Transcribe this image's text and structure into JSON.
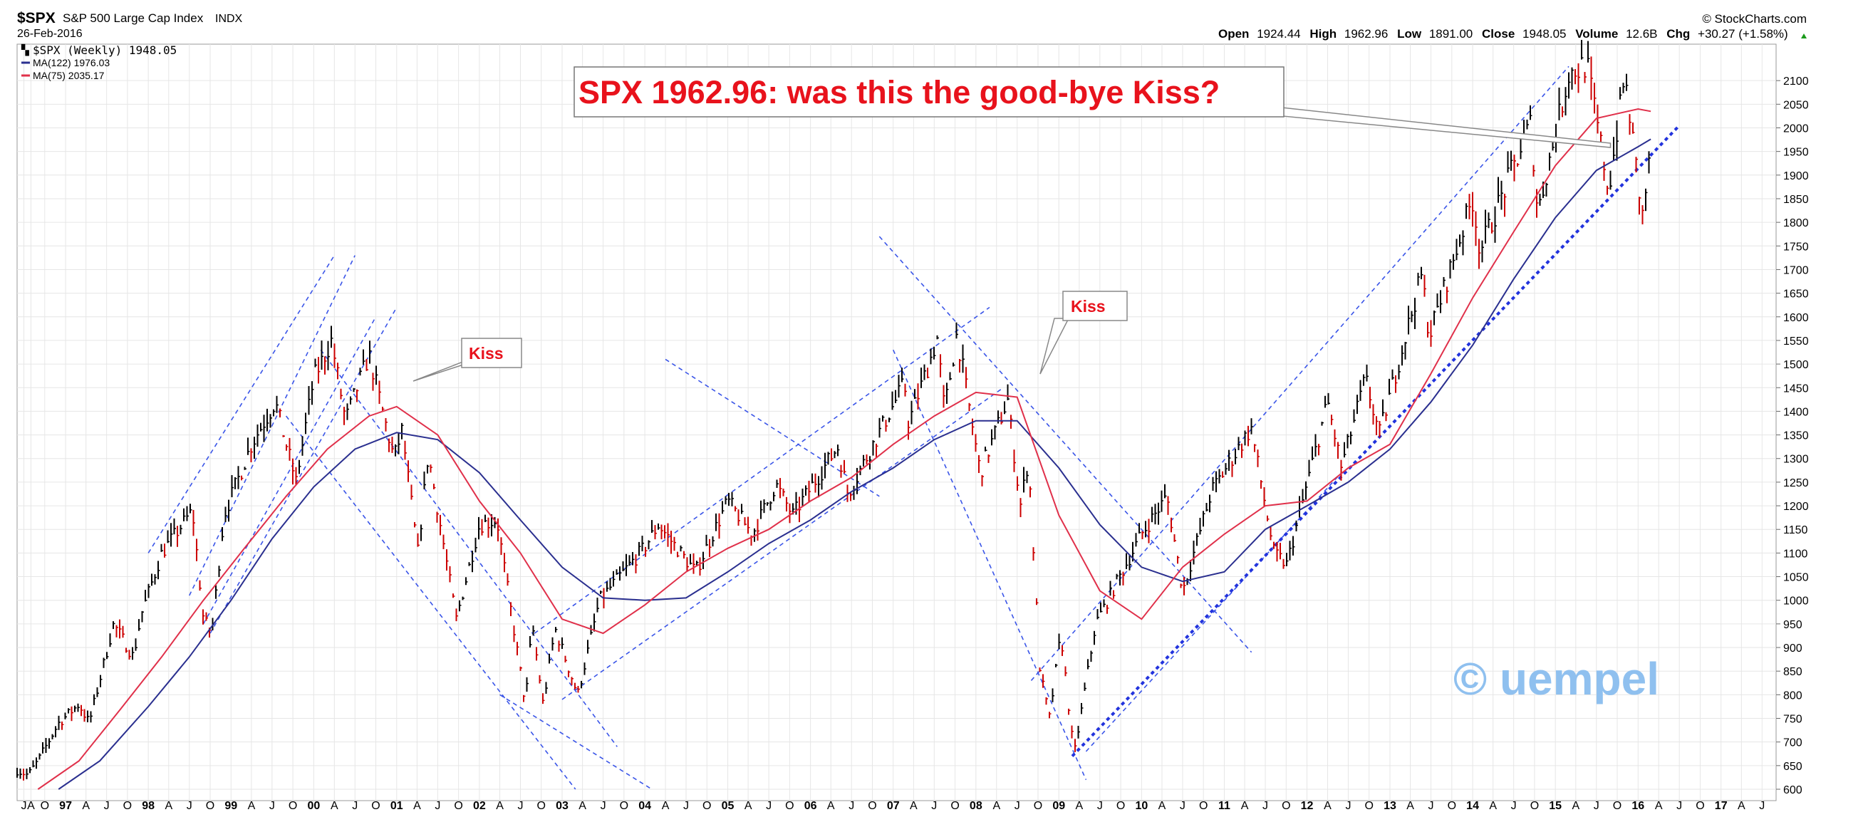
{
  "header": {
    "symbol": "$SPX",
    "name": "S&P 500 Large Cap Index",
    "exchange": "INDX",
    "date": "26-Feb-2016",
    "brand": "© StockCharts.com",
    "quote": {
      "open_label": "Open",
      "open": "1924.44",
      "high_label": "High",
      "high": "1962.96",
      "low_label": "Low",
      "low": "1891.00",
      "close_label": "Close",
      "close": "1948.05",
      "volume_label": "Volume",
      "volume": "12.6B",
      "chg_label": "Chg",
      "chg": "+30.27 (+1.58%)"
    }
  },
  "legend": {
    "price": "$SPX (Weekly) 1948.05",
    "ma122": "MA(122) 1976.03",
    "ma75": "MA(75) 2035.17"
  },
  "annotations": {
    "headline": "SPX 1962.96: was this the good-bye Kiss?",
    "kiss1": "Kiss",
    "kiss2": "Kiss",
    "watermark": "© uempel"
  },
  "colors": {
    "up": "#000000",
    "down": "#cc0000",
    "ma122": "#2a2f8f",
    "ma75": "#e0304a",
    "trendline": "#3a55e8",
    "headline": "#e8121c",
    "watermark": "#8fc0ef",
    "grid": "#e6e6e6"
  },
  "chart_data": {
    "type": "line",
    "title": "$SPX S&P 500 Large Cap Index INDX",
    "x_scale": "weekly dates",
    "ylim": [
      600,
      2150
    ],
    "y_ticks": [
      600,
      650,
      700,
      750,
      800,
      850,
      900,
      950,
      1000,
      1050,
      1100,
      1150,
      1200,
      1250,
      1300,
      1350,
      1400,
      1450,
      1500,
      1550,
      1600,
      1650,
      1700,
      1750,
      1800,
      1850,
      1900,
      1950,
      2000,
      2050,
      2100
    ],
    "x_ticks": [
      [
        "1996-07-01",
        "J"
      ],
      [
        "1996-08-01",
        "A"
      ],
      [
        "1996-10-01",
        "O"
      ],
      [
        "1997-01-01",
        "97"
      ],
      [
        "1997-04-01",
        "A"
      ],
      [
        "1997-07-01",
        "J"
      ],
      [
        "1997-10-01",
        "O"
      ],
      [
        "1998-01-01",
        "98"
      ],
      [
        "1998-04-01",
        "A"
      ],
      [
        "1998-07-01",
        "J"
      ],
      [
        "1998-10-01",
        "O"
      ],
      [
        "1999-01-01",
        "99"
      ],
      [
        "1999-04-01",
        "A"
      ],
      [
        "1999-07-01",
        "J"
      ],
      [
        "1999-10-01",
        "O"
      ],
      [
        "2000-01-01",
        "00"
      ],
      [
        "2000-04-01",
        "A"
      ],
      [
        "2000-07-01",
        "J"
      ],
      [
        "2000-10-01",
        "O"
      ],
      [
        "2001-01-01",
        "01"
      ],
      [
        "2001-04-01",
        "A"
      ],
      [
        "2001-07-01",
        "J"
      ],
      [
        "2001-10-01",
        "O"
      ],
      [
        "2002-01-01",
        "02"
      ],
      [
        "2002-04-01",
        "A"
      ],
      [
        "2002-07-01",
        "J"
      ],
      [
        "2002-10-01",
        "O"
      ],
      [
        "2003-01-01",
        "03"
      ],
      [
        "2003-04-01",
        "A"
      ],
      [
        "2003-07-01",
        "J"
      ],
      [
        "2003-10-01",
        "O"
      ],
      [
        "2004-01-01",
        "04"
      ],
      [
        "2004-04-01",
        "A"
      ],
      [
        "2004-07-01",
        "J"
      ],
      [
        "2004-10-01",
        "O"
      ],
      [
        "2005-01-01",
        "05"
      ],
      [
        "2005-04-01",
        "A"
      ],
      [
        "2005-07-01",
        "J"
      ],
      [
        "2005-10-01",
        "O"
      ],
      [
        "2006-01-01",
        "06"
      ],
      [
        "2006-04-01",
        "A"
      ],
      [
        "2006-07-01",
        "J"
      ],
      [
        "2006-10-01",
        "O"
      ],
      [
        "2007-01-01",
        "07"
      ],
      [
        "2007-04-01",
        "A"
      ],
      [
        "2007-07-01",
        "J"
      ],
      [
        "2007-10-01",
        "O"
      ],
      [
        "2008-01-01",
        "08"
      ],
      [
        "2008-04-01",
        "A"
      ],
      [
        "2008-07-01",
        "J"
      ],
      [
        "2008-10-01",
        "O"
      ],
      [
        "2009-01-01",
        "09"
      ],
      [
        "2009-04-01",
        "A"
      ],
      [
        "2009-07-01",
        "J"
      ],
      [
        "2009-10-01",
        "O"
      ],
      [
        "2010-01-01",
        "10"
      ],
      [
        "2010-04-01",
        "A"
      ],
      [
        "2010-07-01",
        "J"
      ],
      [
        "2010-10-01",
        "O"
      ],
      [
        "2011-01-01",
        "11"
      ],
      [
        "2011-04-01",
        "A"
      ],
      [
        "2011-07-01",
        "J"
      ],
      [
        "2011-10-01",
        "O"
      ],
      [
        "2012-01-01",
        "12"
      ],
      [
        "2012-04-01",
        "A"
      ],
      [
        "2012-07-01",
        "J"
      ],
      [
        "2012-10-01",
        "O"
      ],
      [
        "2013-01-01",
        "13"
      ],
      [
        "2013-04-01",
        "A"
      ],
      [
        "2013-07-01",
        "J"
      ],
      [
        "2013-10-01",
        "O"
      ],
      [
        "2014-01-01",
        "14"
      ],
      [
        "2014-04-01",
        "A"
      ],
      [
        "2014-07-01",
        "J"
      ],
      [
        "2014-10-01",
        "O"
      ],
      [
        "2015-01-01",
        "15"
      ],
      [
        "2015-04-01",
        "A"
      ],
      [
        "2015-07-01",
        "J"
      ],
      [
        "2015-10-01",
        "O"
      ],
      [
        "2016-01-01",
        "16"
      ],
      [
        "2016-04-01",
        "A"
      ],
      [
        "2016-07-01",
        "J"
      ],
      [
        "2016-10-01",
        "O"
      ],
      [
        "2017-01-01",
        "17"
      ],
      [
        "2017-04-01",
        "A"
      ],
      [
        "2017-07-01",
        "J"
      ]
    ],
    "series": [
      {
        "name": "$SPX (Weekly)",
        "points": [
          [
            "1996-06-01",
            640
          ],
          [
            "1996-07-20",
            630
          ],
          [
            "1996-09-01",
            660
          ],
          [
            "1996-12-01",
            740
          ],
          [
            "1997-03-01",
            780
          ],
          [
            "1997-04-15",
            740
          ],
          [
            "1997-08-01",
            950
          ],
          [
            "1997-10-27",
            880
          ],
          [
            "1997-12-01",
            970
          ],
          [
            "1998-03-01",
            1100
          ],
          [
            "1998-07-15",
            1190
          ],
          [
            "1998-09-01",
            960
          ],
          [
            "1998-10-08",
            930
          ],
          [
            "1998-12-01",
            1180
          ],
          [
            "1999-04-01",
            1330
          ],
          [
            "1999-07-15",
            1420
          ],
          [
            "1999-10-15",
            1250
          ],
          [
            "2000-01-01",
            1470
          ],
          [
            "2000-03-20",
            1550
          ],
          [
            "2000-05-20",
            1380
          ],
          [
            "2000-09-01",
            1520
          ],
          [
            "2000-12-20",
            1300
          ],
          [
            "2001-01-25",
            1360
          ],
          [
            "2001-04-04",
            1100
          ],
          [
            "2001-05-20",
            1310
          ],
          [
            "2001-09-21",
            960
          ],
          [
            "2002-01-01",
            1160
          ],
          [
            "2002-03-20",
            1170
          ],
          [
            "2002-07-23",
            780
          ],
          [
            "2002-08-22",
            950
          ],
          [
            "2002-10-09",
            780
          ],
          [
            "2002-12-01",
            940
          ],
          [
            "2003-03-11",
            800
          ],
          [
            "2003-06-15",
            1000
          ],
          [
            "2003-12-31",
            1112
          ],
          [
            "2004-03-01",
            1160
          ],
          [
            "2004-08-12",
            1060
          ],
          [
            "2005-01-01",
            1210
          ],
          [
            "2005-04-20",
            1140
          ],
          [
            "2005-08-01",
            1245
          ],
          [
            "2005-10-15",
            1180
          ],
          [
            "2006-05-01",
            1325
          ],
          [
            "2006-06-15",
            1225
          ],
          [
            "2007-02-20",
            1460
          ],
          [
            "2007-03-10",
            1375
          ],
          [
            "2007-07-15",
            1555
          ],
          [
            "2007-08-15",
            1400
          ],
          [
            "2007-10-09",
            1565
          ],
          [
            "2008-01-20",
            1270
          ],
          [
            "2008-05-20",
            1425
          ],
          [
            "2008-07-15",
            1200
          ],
          [
            "2008-08-20",
            1300
          ],
          [
            "2008-10-10",
            850
          ],
          [
            "2008-11-20",
            750
          ],
          [
            "2009-01-10",
            930
          ],
          [
            "2009-03-09",
            670
          ],
          [
            "2009-06-12",
            950
          ],
          [
            "2010-01-01",
            1140
          ],
          [
            "2010-04-23",
            1220
          ],
          [
            "2010-07-02",
            1020
          ],
          [
            "2010-11-05",
            1230
          ],
          [
            "2011-04-30",
            1365
          ],
          [
            "2011-08-08",
            1100
          ],
          [
            "2011-10-04",
            1075
          ],
          [
            "2012-04-01",
            1420
          ],
          [
            "2012-06-01",
            1280
          ],
          [
            "2012-09-15",
            1470
          ],
          [
            "2012-11-15",
            1350
          ],
          [
            "2013-05-22",
            1690
          ],
          [
            "2013-06-24",
            1560
          ],
          [
            "2013-12-31",
            1850
          ],
          [
            "2014-02-03",
            1740
          ],
          [
            "2014-09-15",
            2010
          ],
          [
            "2014-10-15",
            1820
          ],
          [
            "2015-03-01",
            2115
          ],
          [
            "2015-05-20",
            2135
          ],
          [
            "2015-08-24",
            1867
          ],
          [
            "2015-11-03",
            2110
          ],
          [
            "2016-01-20",
            1812
          ],
          [
            "2016-02-26",
            1948
          ]
        ]
      },
      {
        "name": "MA(122) 1976.03",
        "points": [
          [
            "1996-12-01",
            600
          ],
          [
            "1997-06-01",
            660
          ],
          [
            "1998-01-01",
            775
          ],
          [
            "1998-07-01",
            880
          ],
          [
            "1999-01-01",
            1000
          ],
          [
            "1999-07-01",
            1130
          ],
          [
            "2000-01-01",
            1240
          ],
          [
            "2000-07-01",
            1320
          ],
          [
            "2001-01-01",
            1355
          ],
          [
            "2001-07-01",
            1340
          ],
          [
            "2002-01-01",
            1270
          ],
          [
            "2002-07-01",
            1170
          ],
          [
            "2003-01-01",
            1070
          ],
          [
            "2003-07-01",
            1005
          ],
          [
            "2004-01-01",
            1000
          ],
          [
            "2004-07-01",
            1005
          ],
          [
            "2005-01-01",
            1060
          ],
          [
            "2005-07-01",
            1120
          ],
          [
            "2006-01-01",
            1170
          ],
          [
            "2006-07-01",
            1230
          ],
          [
            "2007-01-01",
            1280
          ],
          [
            "2007-07-01",
            1340
          ],
          [
            "2008-01-01",
            1380
          ],
          [
            "2008-07-01",
            1380
          ],
          [
            "2009-01-01",
            1280
          ],
          [
            "2009-07-01",
            1160
          ],
          [
            "2010-01-01",
            1070
          ],
          [
            "2010-07-01",
            1040
          ],
          [
            "2011-01-01",
            1060
          ],
          [
            "2011-07-01",
            1150
          ],
          [
            "2012-01-01",
            1200
          ],
          [
            "2012-07-01",
            1250
          ],
          [
            "2013-01-01",
            1320
          ],
          [
            "2013-07-01",
            1420
          ],
          [
            "2014-01-01",
            1540
          ],
          [
            "2014-07-01",
            1680
          ],
          [
            "2015-01-01",
            1810
          ],
          [
            "2015-07-01",
            1910
          ],
          [
            "2016-01-01",
            1960
          ],
          [
            "2016-02-26",
            1976
          ]
        ]
      },
      {
        "name": "MA(75) 2035.17",
        "points": [
          [
            "1996-09-01",
            600
          ],
          [
            "1997-03-01",
            660
          ],
          [
            "1997-09-01",
            770
          ],
          [
            "1998-03-01",
            880
          ],
          [
            "1998-09-01",
            1000
          ],
          [
            "1999-03-01",
            1110
          ],
          [
            "1999-09-01",
            1220
          ],
          [
            "2000-03-01",
            1320
          ],
          [
            "2000-09-01",
            1390
          ],
          [
            "2001-01-01",
            1410
          ],
          [
            "2001-07-01",
            1350
          ],
          [
            "2002-01-01",
            1210
          ],
          [
            "2002-07-01",
            1100
          ],
          [
            "2003-01-01",
            960
          ],
          [
            "2003-07-01",
            930
          ],
          [
            "2004-01-01",
            990
          ],
          [
            "2004-07-01",
            1060
          ],
          [
            "2005-01-01",
            1110
          ],
          [
            "2005-07-01",
            1150
          ],
          [
            "2006-01-01",
            1210
          ],
          [
            "2006-07-01",
            1260
          ],
          [
            "2007-01-01",
            1330
          ],
          [
            "2007-07-01",
            1390
          ],
          [
            "2008-01-01",
            1440
          ],
          [
            "2008-07-01",
            1430
          ],
          [
            "2009-01-01",
            1180
          ],
          [
            "2009-07-01",
            1020
          ],
          [
            "2010-01-01",
            960
          ],
          [
            "2010-07-01",
            1070
          ],
          [
            "2011-01-01",
            1140
          ],
          [
            "2011-07-01",
            1200
          ],
          [
            "2012-01-01",
            1210
          ],
          [
            "2012-07-01",
            1280
          ],
          [
            "2013-01-01",
            1330
          ],
          [
            "2013-07-01",
            1480
          ],
          [
            "2014-01-01",
            1640
          ],
          [
            "2014-07-01",
            1780
          ],
          [
            "2015-01-01",
            1920
          ],
          [
            "2015-07-01",
            2020
          ],
          [
            "2016-01-01",
            2040
          ],
          [
            "2016-02-26",
            2035
          ]
        ]
      }
    ],
    "trendlines": [
      [
        [
          "1998-01-01",
          1100
        ],
        [
          "2000-04-01",
          1730
        ]
      ],
      [
        [
          "1998-07-01",
          1010
        ],
        [
          "2000-07-01",
          1730
        ]
      ],
      [
        [
          "1998-09-01",
          950
        ],
        [
          "2000-10-01",
          1600
        ]
      ],
      [
        [
          "1998-10-01",
          930
        ],
        [
          "2001-01-01",
          1620
        ]
      ],
      [
        [
          "2000-02-01",
          1530
        ],
        [
          "2003-09-01",
          690
        ]
      ],
      [
        [
          "1999-09-01",
          1390
        ],
        [
          "2003-03-01",
          600
        ]
      ],
      [
        [
          "2002-04-01",
          800
        ],
        [
          "2004-02-01",
          600
        ]
      ],
      [
        [
          "2002-09-01",
          930
        ],
        [
          "2008-03-01",
          1620
        ]
      ],
      [
        [
          "2003-01-01",
          790
        ],
        [
          "2008-05-01",
          1450
        ]
      ],
      [
        [
          "2004-04-01",
          1510
        ],
        [
          "2006-11-01",
          1220
        ]
      ],
      [
        [
          "2006-11-01",
          1770
        ],
        [
          "2011-05-01",
          890
        ]
      ],
      [
        [
          "2007-01-01",
          1530
        ],
        [
          "2009-05-01",
          620
        ]
      ],
      [
        [
          "2008-09-01",
          830
        ],
        [
          "2015-03-01",
          2130
        ]
      ],
      [
        [
          "2009-05-01",
          680
        ],
        [
          "2012-06-01",
          1270
        ]
      ]
    ],
    "support_line": [
      [
        "2009-03-01",
        670
      ],
      [
        "2016-07-01",
        2005
      ]
    ],
    "headline_pointer_target": [
      "2015-09-01",
      1963
    ]
  }
}
